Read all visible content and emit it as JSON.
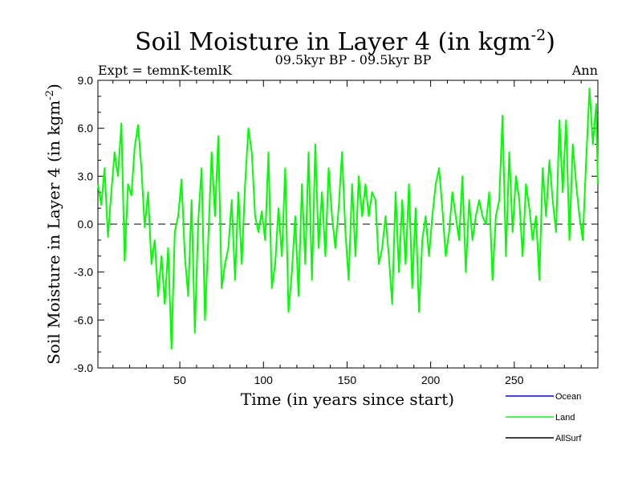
{
  "chart_data": {
    "type": "line",
    "title": "Soil Moisture in Layer 4 (in kgm",
    "title_sup": "-2",
    "title_end": ")",
    "subtitle_left": "Expt = temnK-temlK",
    "subtitle_center": "09.5kyr BP - 09.5kyr BP",
    "subtitle_right": "Ann",
    "xlabel": "Time (in years since start)",
    "ylabel": "Soil Moisture in Layer 4 (in kgm",
    "ylabel_sup": "-2",
    "ylabel_end": ")",
    "xlim": [
      1,
      300
    ],
    "ylim": [
      -9,
      9
    ],
    "xticks": [
      50,
      100,
      150,
      200,
      250
    ],
    "xtick_labels": [
      "50",
      "100",
      "150",
      "200",
      "250"
    ],
    "yticks": [
      -9,
      -6,
      -3,
      0,
      3,
      6,
      9
    ],
    "ytick_labels": [
      "-9.0",
      "-6.0",
      "-3.0",
      "0.0",
      "3.0",
      "6.0",
      "9.0"
    ],
    "zero_line": true,
    "legend": [
      {
        "name": "Ocean",
        "color": "#0000ff"
      },
      {
        "name": "Land",
        "color": "#00ff00"
      },
      {
        "name": "AllSurf",
        "color": "#000000"
      }
    ],
    "series": [
      {
        "name": "Land",
        "color": "#00ff00",
        "x": [
          1,
          3,
          5,
          7,
          9,
          11,
          13,
          15,
          17,
          19,
          21,
          23,
          25,
          27,
          29,
          31,
          33,
          35,
          37,
          39,
          41,
          43,
          45,
          47,
          49,
          51,
          53,
          55,
          57,
          59,
          61,
          63,
          65,
          67,
          69,
          71,
          73,
          75,
          77,
          79,
          81,
          83,
          85,
          87,
          89,
          91,
          93,
          95,
          97,
          99,
          101,
          103,
          105,
          107,
          109,
          111,
          113,
          115,
          117,
          119,
          121,
          123,
          125,
          127,
          129,
          131,
          133,
          135,
          137,
          139,
          141,
          143,
          145,
          147,
          149,
          151,
          153,
          155,
          157,
          159,
          161,
          163,
          165,
          167,
          169,
          171,
          173,
          175,
          177,
          179,
          181,
          183,
          185,
          187,
          189,
          191,
          193,
          195,
          197,
          199,
          201,
          203,
          205,
          207,
          209,
          211,
          213,
          215,
          217,
          219,
          221,
          223,
          225,
          227,
          229,
          231,
          233,
          235,
          237,
          239,
          241,
          243,
          245,
          247,
          249,
          251,
          253,
          255,
          257,
          259,
          261,
          263,
          265,
          267,
          269,
          271,
          273,
          275,
          277,
          279,
          281,
          283,
          285,
          287,
          289,
          291,
          293,
          295,
          297,
          299,
          300
        ],
        "values": [
          2.5,
          1.2,
          3.5,
          -0.8,
          2.0,
          4.5,
          3.0,
          6.3,
          -2.3,
          2.5,
          1.8,
          4.8,
          6.2,
          3.5,
          -0.2,
          2.0,
          -2.5,
          -1.0,
          -4.5,
          -2.0,
          -5.0,
          -1.5,
          -7.8,
          -0.5,
          0.5,
          2.8,
          -2.0,
          -4.5,
          1.5,
          -6.8,
          0.2,
          3.5,
          -6.0,
          -1.0,
          4.5,
          0.5,
          5.5,
          -4.0,
          -2.5,
          -1.5,
          1.5,
          -3.5,
          2.0,
          -2.5,
          2.5,
          6.0,
          4.5,
          0.5,
          -0.5,
          0.8,
          -1.0,
          4.5,
          -4.0,
          -2.5,
          1.0,
          -2.0,
          3.5,
          -5.5,
          -3.0,
          0.5,
          -4.5,
          2.5,
          -2.5,
          4.5,
          -3.5,
          5.0,
          -1.5,
          2.0,
          -2.0,
          3.5,
          0.5,
          -1.5,
          1.0,
          4.5,
          -0.5,
          -3.5,
          2.5,
          -2.0,
          3.0,
          0.5,
          2.5,
          0.5,
          2.0,
          1.5,
          -2.5,
          -1.5,
          0.5,
          -2.0,
          -5.0,
          2.0,
          -3.0,
          1.5,
          -2.5,
          2.5,
          -4.0,
          1.0,
          -5.5,
          -1.0,
          0.5,
          -2.0,
          0.5,
          2.5,
          3.5,
          1.0,
          -2.0,
          -0.5,
          2.0,
          0.5,
          -1.0,
          3.0,
          -3.0,
          1.5,
          -1.0,
          0.5,
          1.5,
          0.5,
          0.0,
          2.0,
          -3.5,
          0.5,
          1.5,
          6.8,
          -2.0,
          4.5,
          -0.5,
          3.0,
          1.5,
          -2.0,
          2.5,
          1.0,
          -1.0,
          0.5,
          -3.5,
          3.5,
          0.5,
          4.0,
          1.5,
          -0.5,
          6.5,
          2.0,
          6.5,
          -1.0,
          5.0,
          2.5,
          0.5,
          -1.0,
          4.0,
          8.5,
          5.0,
          7.5,
          2.5
        ]
      }
    ]
  }
}
